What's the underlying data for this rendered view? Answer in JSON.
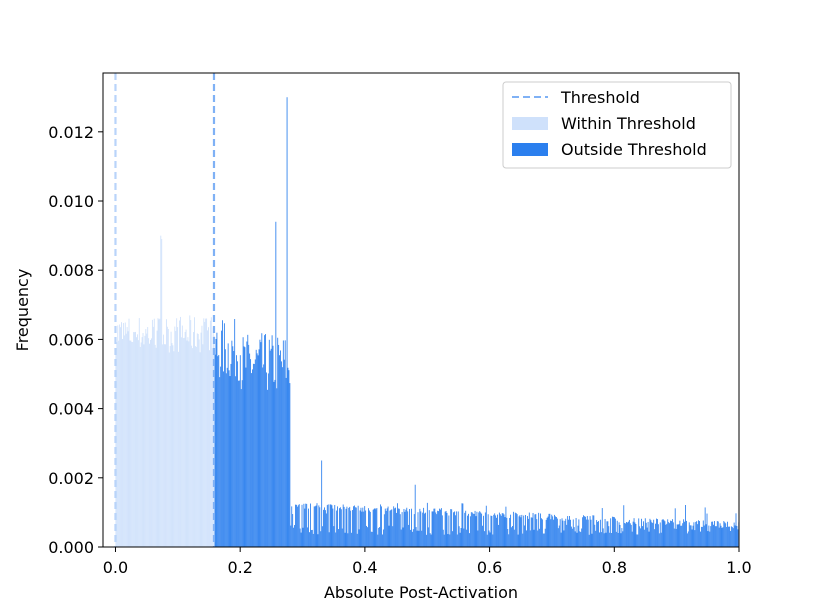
{
  "chart_data": {
    "type": "histogram",
    "xlabel": "Absolute Post-Activation",
    "ylabel": "Frequency",
    "xlim": [
      -0.02,
      1.0
    ],
    "ylim": [
      0.0,
      0.0137
    ],
    "x_ticks": [
      "0.0",
      "0.2",
      "0.4",
      "0.6",
      "0.8",
      "1.0"
    ],
    "x_tick_values": [
      0.0,
      0.2,
      0.4,
      0.6,
      0.8,
      1.0
    ],
    "y_ticks": [
      "0.000",
      "0.002",
      "0.004",
      "0.006",
      "0.008",
      "0.010",
      "0.012"
    ],
    "y_tick_values": [
      0.0,
      0.002,
      0.004,
      0.006,
      0.008,
      0.01,
      0.012
    ],
    "thresholds": [
      0.0,
      0.158
    ],
    "legend_position": "top-right",
    "legend": [
      {
        "label": "Threshold",
        "kind": "dashed-line",
        "color": "#7fb1f5"
      },
      {
        "label": "Within Threshold",
        "kind": "patch",
        "color": "#cfe1fb"
      },
      {
        "label": "Outside Threshold",
        "kind": "patch",
        "color": "#2b7fee"
      }
    ],
    "series": [
      {
        "name": "Within Threshold",
        "color": "#cfe1fb",
        "x_range": [
          0.0,
          0.158
        ],
        "representative_values": [
          0.0058,
          0.0062,
          0.0061,
          0.006,
          0.0063,
          0.0062,
          0.0089,
          0.006,
          0.0061,
          0.0062,
          0.0063,
          0.0062,
          0.0061,
          0.0063,
          0.0063
        ]
      },
      {
        "name": "Outside Threshold",
        "color": "#2b7fee",
        "x_range": [
          0.158,
          1.0
        ],
        "peaks": [
          {
            "x": 0.256,
            "y": 0.0094
          },
          {
            "x": 0.274,
            "y": 0.013
          },
          {
            "x": 0.33,
            "y": 0.0025
          },
          {
            "x": 0.48,
            "y": 0.0018
          }
        ],
        "plateau_0_16_to_0_28": 0.0052,
        "tail_level_after_0_29": 0.0006
      }
    ]
  }
}
